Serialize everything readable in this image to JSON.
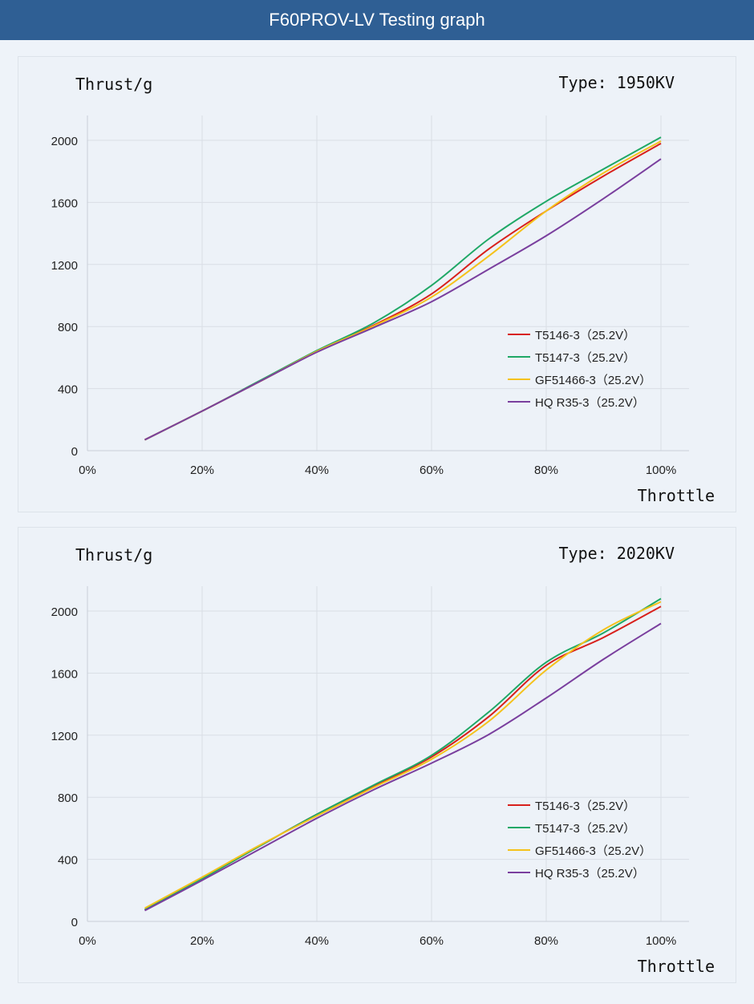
{
  "header": {
    "title": "F60PROV-LV Testing graph"
  },
  "chart_data": [
    {
      "type": "line",
      "title": "Type: 1950KV",
      "ylabel": "Thrust/g",
      "xlabel": "Throttle",
      "x": [
        10,
        20,
        30,
        40,
        50,
        60,
        70,
        80,
        90,
        100
      ],
      "xticks": [
        "0%",
        "20%",
        "40%",
        "60%",
        "80%",
        "100%"
      ],
      "yticks": [
        "0",
        "400",
        "800",
        "1200",
        "1600",
        "2000"
      ],
      "xlim": [
        0,
        100
      ],
      "ylim": [
        0,
        2200
      ],
      "grid": true,
      "legend": "center-right",
      "series": [
        {
          "name": "T5146-3（25.2V）",
          "color": "#d8201c",
          "values": [
            70,
            255,
            445,
            640,
            810,
            1010,
            1300,
            1545,
            1770,
            1980
          ]
        },
        {
          "name": "T5147-3（25.2V）",
          "color": "#1fa866",
          "values": [
            70,
            255,
            450,
            645,
            825,
            1065,
            1365,
            1607,
            1815,
            2020
          ]
        },
        {
          "name": "GF51466-3（25.2V）",
          "color": "#f5c21b",
          "values": [
            70,
            255,
            445,
            640,
            805,
            990,
            1255,
            1545,
            1790,
            1995
          ]
        },
        {
          "name": "HQ R35-3（25.2V）",
          "color": "#7a3f9e",
          "values": [
            70,
            255,
            445,
            635,
            795,
            960,
            1170,
            1385,
            1625,
            1880
          ]
        }
      ]
    },
    {
      "type": "line",
      "title": "Type: 2020KV",
      "ylabel": "Thrust/g",
      "xlabel": "Throttle",
      "x": [
        10,
        20,
        30,
        40,
        50,
        60,
        70,
        80,
        90,
        100
      ],
      "xticks": [
        "0%",
        "20%",
        "40%",
        "60%",
        "80%",
        "100%"
      ],
      "yticks": [
        "0",
        "400",
        "800",
        "1200",
        "1600",
        "2000"
      ],
      "xlim": [
        0,
        100
      ],
      "ylim": [
        0,
        2200
      ],
      "grid": true,
      "legend": "center-right",
      "series": [
        {
          "name": "T5146-3（25.2V）",
          "color": "#d8201c",
          "values": [
            75,
            275,
            485,
            690,
            875,
            1060,
            1320,
            1650,
            1830,
            2030
          ]
        },
        {
          "name": "T5147-3（25.2V）",
          "color": "#1fa866",
          "values": [
            75,
            275,
            485,
            690,
            880,
            1070,
            1350,
            1670,
            1860,
            2080
          ]
        },
        {
          "name": "GF51466-3（25.2V）",
          "color": "#f5c21b",
          "values": [
            85,
            285,
            490,
            680,
            865,
            1045,
            1290,
            1620,
            1880,
            2060
          ]
        },
        {
          "name": "HQ R35-3（25.2V）",
          "color": "#7a3f9e",
          "values": [
            70,
            265,
            465,
            665,
            850,
            1020,
            1205,
            1440,
            1690,
            1920
          ]
        }
      ]
    }
  ]
}
